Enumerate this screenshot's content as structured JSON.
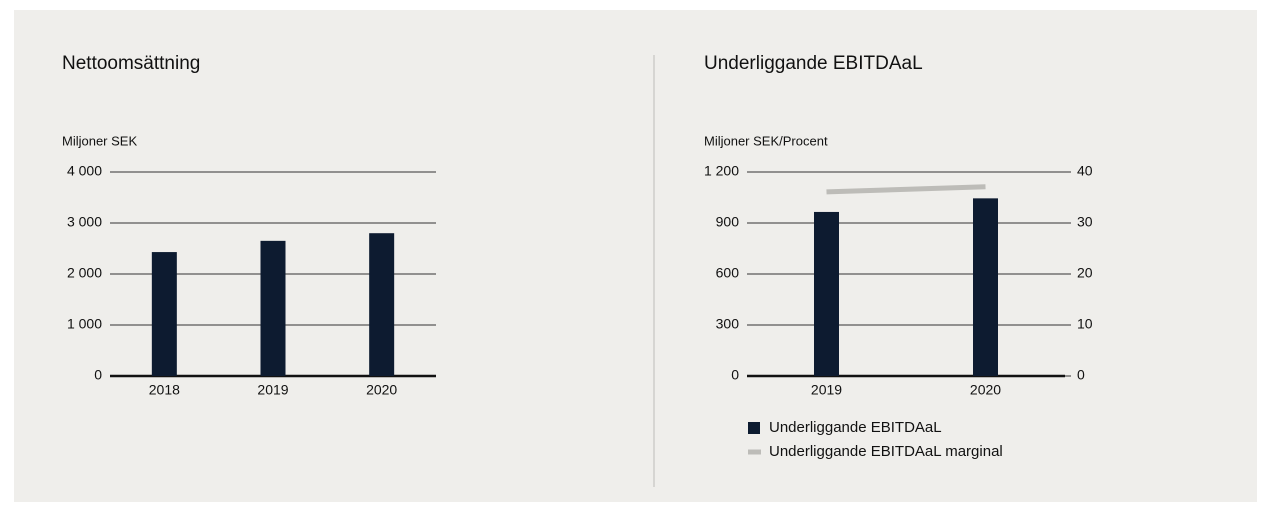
{
  "chart_data": [
    {
      "type": "bar",
      "title": "Nettoomsättning",
      "ylabel": "Miljoner SEK",
      "categories": [
        "2018",
        "2019",
        "2020"
      ],
      "series": [
        {
          "name": "Nettoomsättning",
          "color": "#0d1b30",
          "values": [
            2430,
            2650,
            2800
          ]
        }
      ],
      "ylim": [
        0,
        4000
      ],
      "yticks": [
        0,
        {
          "value": 1000,
          "label": "1 000"
        },
        {
          "value": 2000,
          "label": "2 000"
        },
        {
          "value": 3000,
          "label": "3 000"
        },
        {
          "value": 4000,
          "label": "4 000"
        }
      ],
      "grid": true,
      "legend": false
    },
    {
      "type": "bar",
      "title": "Underliggande EBITDAaL",
      "ylabel": "Miljoner SEK/Procent",
      "categories": [
        "2019",
        "2020"
      ],
      "series": [
        {
          "name": "Underliggande EBITDAaL",
          "color": "#0d1b30",
          "values": [
            965,
            1045
          ]
        },
        {
          "name": "Underliggande EBITDAaL marginal",
          "color": "#bdbcb8",
          "type": "line",
          "axis": "y2",
          "values": [
            36.1,
            37.1
          ]
        }
      ],
      "ylim": [
        0,
        1200
      ],
      "yticks": [
        0,
        300,
        600,
        900,
        {
          "value": 1200,
          "label": "1 200"
        }
      ],
      "y2lim": [
        0,
        40
      ],
      "y2ticks": [
        0,
        10,
        20,
        30,
        40
      ],
      "grid": true,
      "legend": "bottom-left"
    }
  ]
}
